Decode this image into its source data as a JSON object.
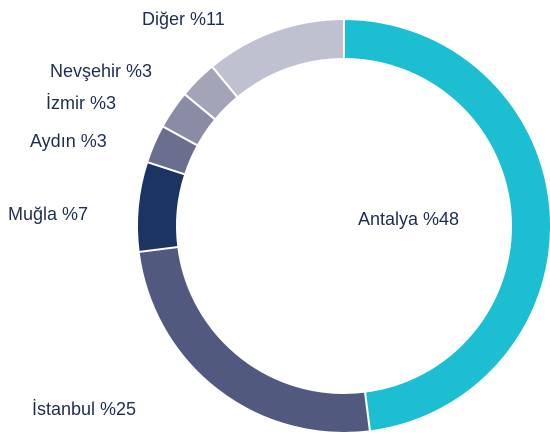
{
  "chart_data": {
    "type": "donut",
    "values": [
      48,
      25,
      7,
      3,
      3,
      3,
      11
    ],
    "value_labels": [
      "Antalya %48",
      "İstanbul %25",
      "Muğla %7",
      "Aydın %3",
      "İzmir %3",
      "Nevşehir %3",
      "Diğer %11"
    ],
    "colors": [
      "#1bbfd1",
      "#515a7e",
      "#1b3462",
      "#6b6f8f",
      "#8a8ca6",
      "#a3a4b8",
      "#bfc0d0"
    ]
  }
}
